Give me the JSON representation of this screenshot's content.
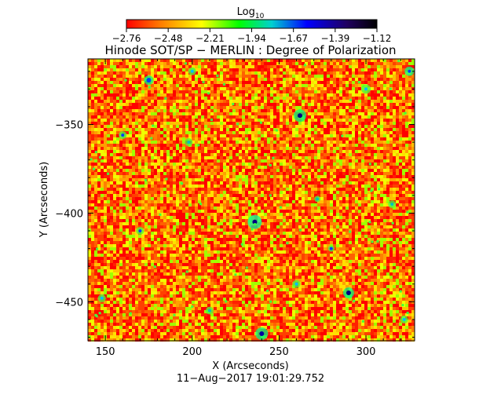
{
  "chart_data": {
    "type": "heatmap",
    "title": "Hinode SOT/SP − MERLIN : Degree of Polarization",
    "xlabel": "X (Arcseconds)",
    "ylabel": "Y (Arcseconds)",
    "footer": "11−Aug−2017 19:01:29.752",
    "colorbar": {
      "title_base": "Log",
      "title_sub": "10",
      "ticks": [
        "−2.76",
        "−2.48",
        "−2.21",
        "−1.94",
        "−1.67",
        "−1.39",
        "−1.12"
      ],
      "range": [
        -2.76,
        -1.12
      ],
      "colors": [
        "#ff0000",
        "#ff7f00",
        "#ffff00",
        "#00ff00",
        "#00e0e0",
        "#0000ff",
        "#000080",
        "#000000"
      ]
    },
    "xlim": [
      140,
      328
    ],
    "ylim": [
      -472,
      -313
    ],
    "x_ticks": [
      150,
      200,
      250,
      300
    ],
    "x_tick_labels": [
      "150",
      "200",
      "250",
      "300"
    ],
    "y_ticks": [
      -350,
      -400,
      -450
    ],
    "y_tick_labels": [
      "−350",
      "−400",
      "−450"
    ],
    "map_summary": "Mostly red-orange noise with yellow/green speckle; scattered small blue/dark compact patches near (175,-325),(262,-345),(236,-405),(290,-445),(240,-470),(325,-320)."
  }
}
